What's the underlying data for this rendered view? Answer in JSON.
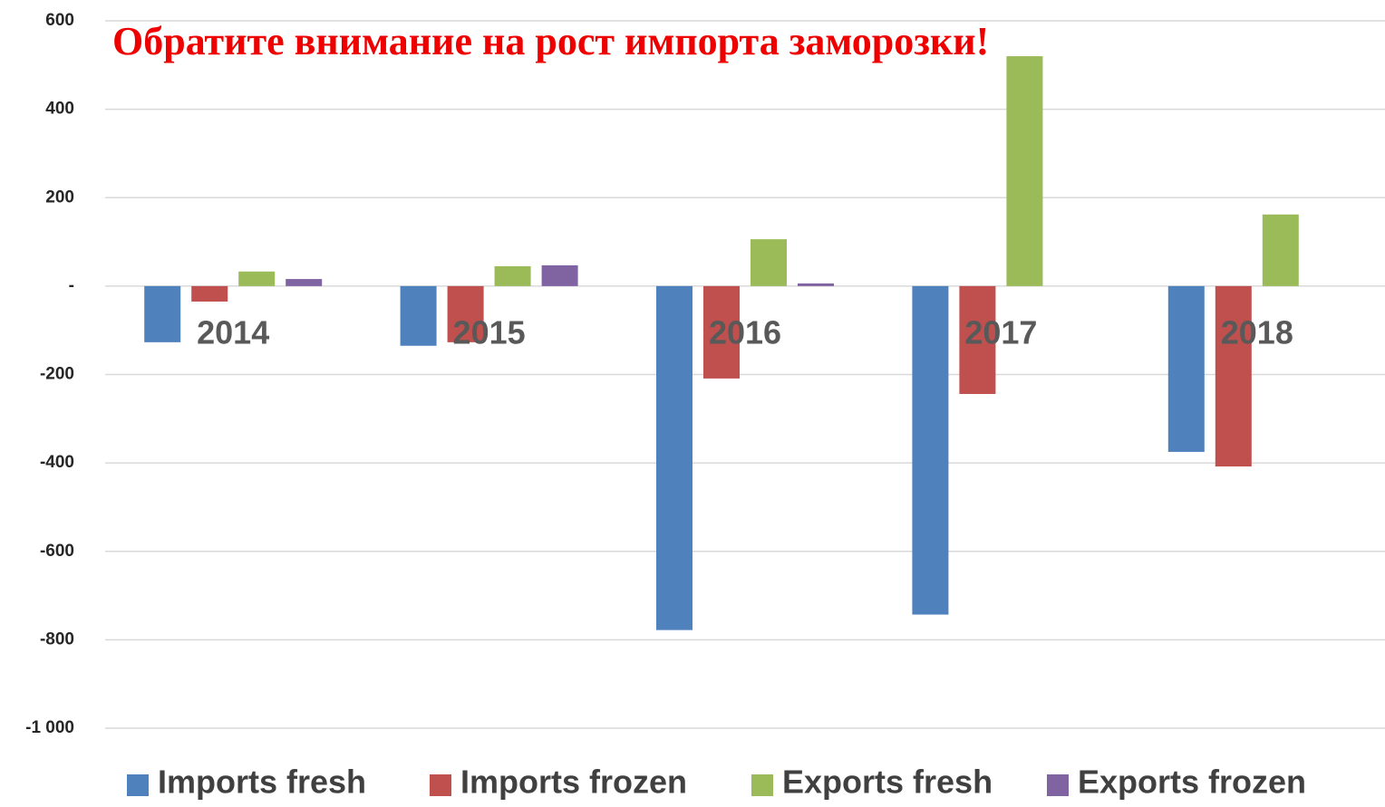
{
  "chart_data": {
    "type": "bar",
    "title": "Обратите внимание на рост импорта заморозки!",
    "categories": [
      "2014",
      "2015",
      "2016",
      "2017",
      "2018"
    ],
    "series": [
      {
        "name": "Imports fresh",
        "color": "#4f81bd",
        "values": [
          -127,
          -135,
          -778,
          -743,
          -375
        ]
      },
      {
        "name": "Imports frozen",
        "color": "#c0504d",
        "values": [
          -35,
          -127,
          -209,
          -244,
          -408
        ]
      },
      {
        "name": "Exports fresh",
        "color": "#9bbb59",
        "values": [
          33,
          45,
          106,
          520,
          162
        ]
      },
      {
        "name": "Exports frozen",
        "color": "#8064a2",
        "values": [
          16,
          47,
          6,
          0,
          0
        ]
      }
    ],
    "ylim": [
      -1000,
      600
    ],
    "yticks": [
      {
        "value": -1000,
        "label": "-1 000"
      },
      -800,
      -600,
      -400,
      -200,
      {
        "value": 0,
        "label": "-"
      },
      200,
      400,
      600
    ],
    "grid": true
  }
}
